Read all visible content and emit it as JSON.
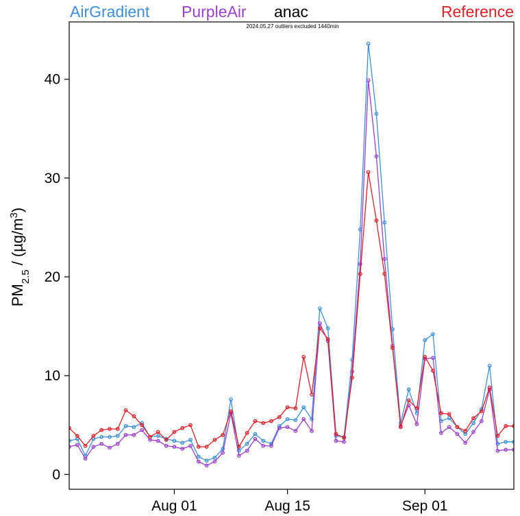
{
  "chart_data": {
    "type": "line",
    "title": "anac",
    "subtitle": "2024.05.27 outliers excluded 1440min",
    "ylabel": {
      "base": "PM",
      "sub": "2.5",
      "mid": " / (µg/m",
      "sup": "3",
      "end": ")"
    },
    "xlabel": "",
    "xlim": [
      0,
      55
    ],
    "ylim": [
      -1.5,
      45.8
    ],
    "yticks": [
      0,
      10,
      20,
      30,
      40
    ],
    "ytick_labels": [
      "0",
      "10",
      "20",
      "30",
      "40"
    ],
    "xticks": [
      13,
      27,
      44
    ],
    "xtick_labels": [
      "Aug 01",
      "Aug 15",
      "Sep 01"
    ],
    "grid": false,
    "x": [
      0,
      1,
      2,
      3,
      4,
      5,
      6,
      7,
      8,
      9,
      10,
      11,
      12,
      13,
      14,
      15,
      16,
      17,
      18,
      19,
      20,
      21,
      22,
      23,
      24,
      25,
      26,
      27,
      28,
      29,
      30,
      31,
      32,
      33,
      34,
      35,
      36,
      37,
      38,
      39,
      40,
      41,
      42,
      43,
      44,
      45,
      46,
      47,
      48,
      49,
      50,
      51,
      52,
      53,
      54,
      55
    ],
    "series": [
      {
        "name": "AirGradient",
        "color": "#3c8fdc",
        "values": [
          3.4,
          3.6,
          1.9,
          3.6,
          3.8,
          3.8,
          3.9,
          4.9,
          4.8,
          5.2,
          3.8,
          3.9,
          3.6,
          3.4,
          3.2,
          3.5,
          1.8,
          1.4,
          1.7,
          2.6,
          7.6,
          2.4,
          3.1,
          4.1,
          3.4,
          3.1,
          4.9,
          5.6,
          5.5,
          6.8,
          5.6,
          16.8,
          14.8,
          3.9,
          3.8,
          11.6,
          24.8,
          43.6,
          36.5,
          25.5,
          14.7,
          5.2,
          8.6,
          6.2,
          13.6,
          14.2,
          5.4,
          5.7,
          4.8,
          4.1,
          5.2,
          6.6,
          11.0,
          3.1,
          3.3,
          3.3
        ]
      },
      {
        "name": "PurpleAir",
        "color": "#9a3fd0",
        "values": [
          2.8,
          3.0,
          1.6,
          2.8,
          3.1,
          2.7,
          3.1,
          4.0,
          4.0,
          4.5,
          3.5,
          3.4,
          2.9,
          2.8,
          2.6,
          2.9,
          1.3,
          0.9,
          1.3,
          2.2,
          6.2,
          1.9,
          2.4,
          3.6,
          2.9,
          2.9,
          4.7,
          4.8,
          4.4,
          5.6,
          4.4,
          15.3,
          13.5,
          3.4,
          3.3,
          10.4,
          21.3,
          39.9,
          32.2,
          21.8,
          13.0,
          4.9,
          7.0,
          5.1,
          11.7,
          11.8,
          4.2,
          4.8,
          4.1,
          3.2,
          4.3,
          5.4,
          8.6,
          2.4,
          2.5,
          2.5
        ]
      },
      {
        "name": "Reference",
        "color": "#e01e26",
        "values": [
          4.7,
          3.9,
          2.9,
          3.9,
          4.5,
          4.6,
          4.6,
          6.5,
          5.9,
          5.0,
          3.8,
          4.3,
          3.5,
          4.3,
          4.7,
          5.0,
          2.8,
          2.8,
          3.5,
          4.0,
          6.4,
          2.8,
          4.2,
          5.4,
          5.2,
          5.4,
          5.8,
          6.8,
          6.7,
          11.9,
          8.1,
          14.8,
          13.7,
          4.1,
          3.7,
          9.8,
          20.3,
          30.6,
          25.7,
          20.3,
          12.8,
          4.8,
          7.5,
          6.7,
          11.9,
          10.5,
          6.2,
          6.1,
          4.8,
          4.4,
          5.7,
          6.4,
          8.8,
          3.9,
          4.9,
          4.9
        ]
      }
    ]
  }
}
